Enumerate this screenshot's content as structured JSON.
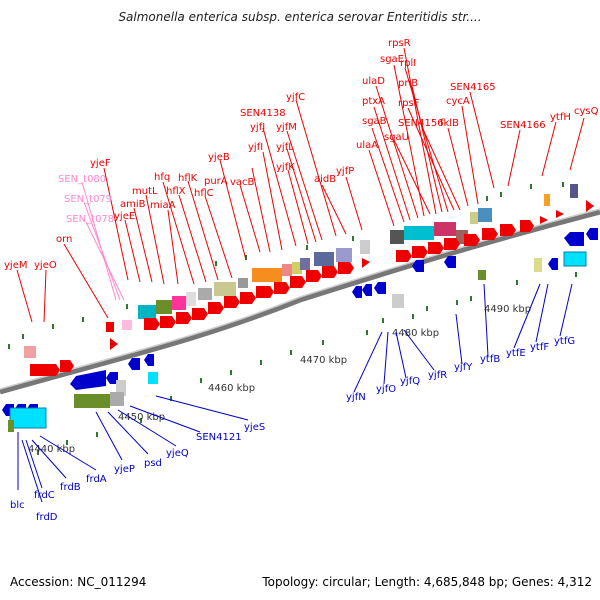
{
  "title": "Salmonella enterica subsp. enterica serovar Enteritidis str....",
  "footer": {
    "accession": "Accession: NC_011294",
    "summary": "Topology: circular; Length: 4,685,848 bp; Genes: 4,312"
  },
  "scale_labels": [
    "4440 kbp",
    "4450 kbp",
    "4460 kbp",
    "4470 kbp",
    "4480 kbp",
    "4490 kbp"
  ],
  "colors": {
    "forward_gene": "#ee0000",
    "reverse_gene": "#0000cc",
    "rna_gene": "#ff66bb",
    "backbone": "#888888"
  },
  "top_genes": [
    "yjeM",
    "yjeO",
    "orn",
    "SEN_t078",
    "SEN_t079",
    "SEN_t080",
    "yjeF",
    "yjeE",
    "amiB",
    "mutL",
    "miaA",
    "hfq",
    "hflX",
    "hflK",
    "hflC",
    "purA",
    "yjeB",
    "vacB",
    "yjfI",
    "yjfJ",
    "SEN4138",
    "yjfK",
    "yjfL",
    "yjfM",
    "yjfC",
    "aidB",
    "yjfP",
    "ulaA",
    "sgaB",
    "ptxA",
    "ulaD",
    "sgaE",
    "sgaU",
    "rpsR",
    "priB",
    "rplI",
    "rpsF",
    "SEN4156",
    "fklB",
    "cycA",
    "SEN4165",
    "SEN4166",
    "ytfH",
    "cysQ"
  ],
  "bottom_genes": [
    "blc",
    "frdD",
    "frdC",
    "frdB",
    "frdA",
    "yjeP",
    "psd",
    "yjeQ",
    "SEN4121",
    "yjeS",
    "yjfN",
    "yjfO",
    "yjfQ",
    "yjfR",
    "yjfY",
    "ytfB",
    "ytfE",
    "ytfF",
    "ytfG"
  ]
}
